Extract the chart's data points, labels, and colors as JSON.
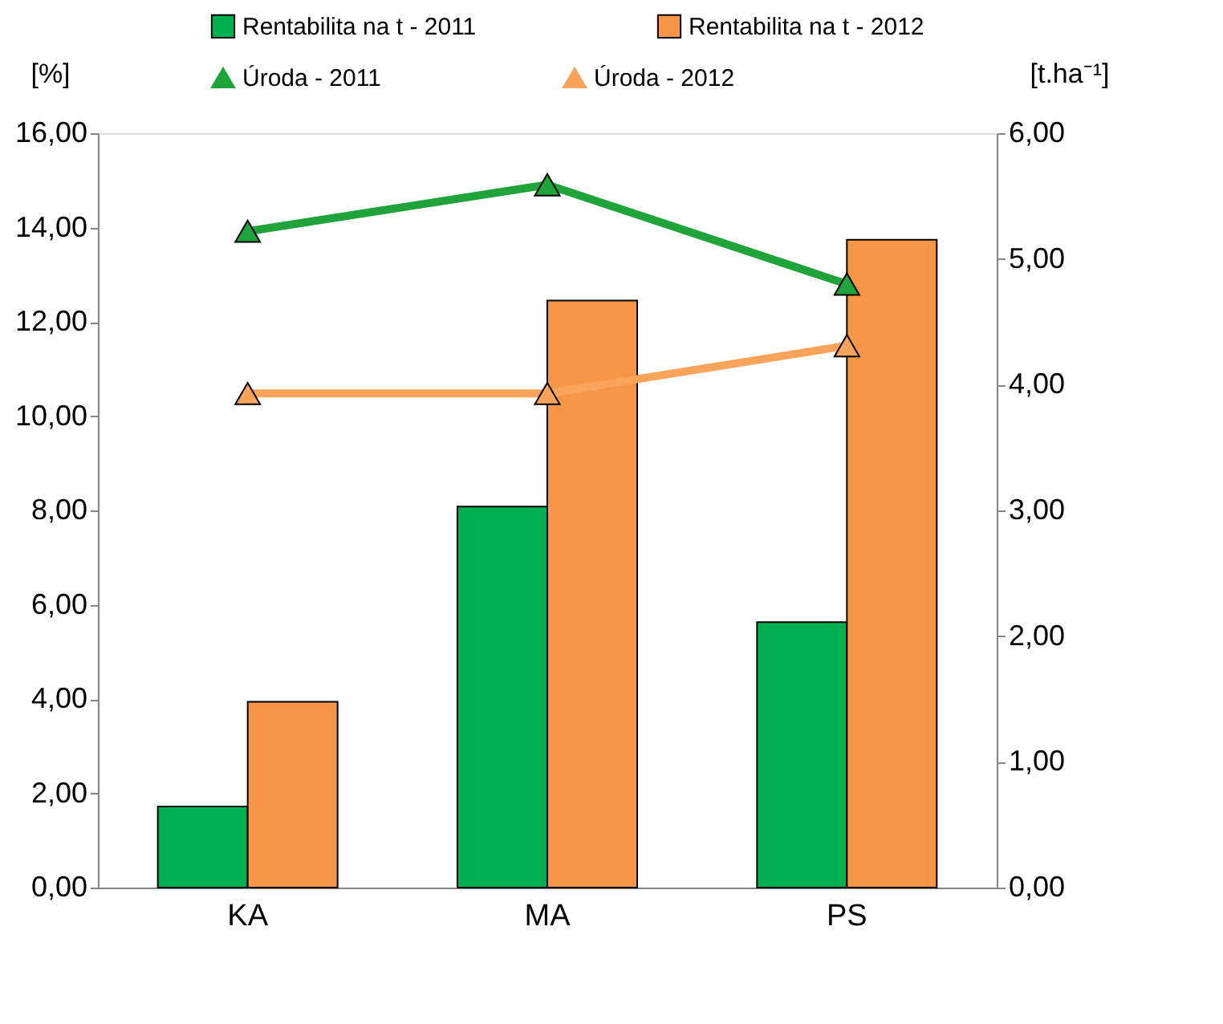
{
  "chart_data": {
    "type": "bar",
    "categories": [
      "KA",
      "MA",
      "PS"
    ],
    "series": [
      {
        "name": "Rentabilita na t - 2011",
        "color": "#00b050",
        "values": [
          1.72,
          8.08,
          5.63
        ]
      },
      {
        "name": "Rentabilita na t - 2012",
        "color": "#f79646",
        "values": [
          3.94,
          12.45,
          13.74
        ]
      },
      {
        "name": "Úroda - 2011",
        "type": "line",
        "axis": "y2",
        "color": "#1fa33a",
        "values": [
          5.22,
          5.59,
          4.8
        ]
      },
      {
        "name": "Úroda - 2012",
        "type": "line",
        "axis": "y2",
        "color": "#f9a45a",
        "values": [
          3.93,
          3.93,
          4.31
        ]
      }
    ],
    "ylabel": "[%]",
    "y2label": "[t.ha⁻¹]",
    "ylim": [
      0,
      16
    ],
    "yticks": [
      {
        "value": 0,
        "label": "0,00"
      },
      {
        "value": 2,
        "label": "2,00"
      },
      {
        "value": 4,
        "label": "4,00"
      },
      {
        "value": 6,
        "label": "6,00"
      },
      {
        "value": 8,
        "label": "8,00"
      },
      {
        "value": 10,
        "label": "10,00"
      },
      {
        "value": 12,
        "label": "12,00"
      },
      {
        "value": 14,
        "label": "14,00"
      },
      {
        "value": 16,
        "label": "16,00"
      }
    ],
    "y2lim": [
      0,
      6
    ],
    "y2ticks": [
      {
        "value": 0,
        "label": "0,00"
      },
      {
        "value": 1,
        "label": "1,00"
      },
      {
        "value": 2,
        "label": "2,00"
      },
      {
        "value": 3,
        "label": "3,00"
      },
      {
        "value": 4,
        "label": "4,00"
      },
      {
        "value": 5,
        "label": "5,00"
      },
      {
        "value": 6,
        "label": "6,00"
      }
    ],
    "legend": "top",
    "marker": "triangle",
    "grid": false
  }
}
